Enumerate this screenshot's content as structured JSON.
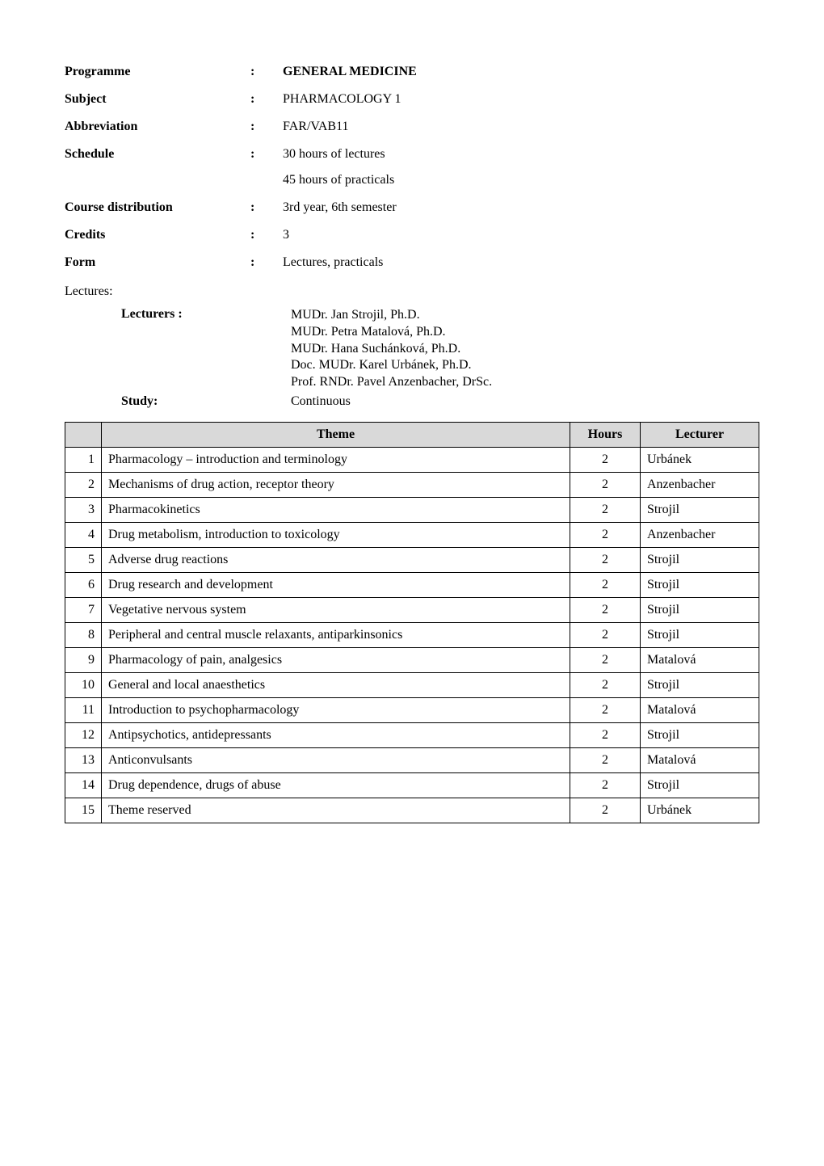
{
  "meta": {
    "rows": [
      {
        "label": "Programme",
        "value": "GENERAL MEDICINE",
        "value_bold": true,
        "sub": null
      },
      {
        "label": "Subject",
        "value": "PHARMACOLOGY 1",
        "value_bold": false,
        "sub": null
      },
      {
        "label": "Abbreviation",
        "value": "FAR/VAB11",
        "value_bold": false,
        "sub": null
      },
      {
        "label": "Schedule",
        "value": "30 hours of lectures",
        "value_bold": false,
        "sub": "45 hours of practicals"
      },
      {
        "label": "Course distribution",
        "value": "3rd year, 6th semester",
        "value_bold": false,
        "sub": null
      },
      {
        "label": "Credits",
        "value": "3",
        "value_bold": false,
        "sub": null
      },
      {
        "label": "Form",
        "value": "Lectures, practicals",
        "value_bold": false,
        "sub": null
      }
    ],
    "colon": ":"
  },
  "lectures": {
    "heading": "Lectures:",
    "lecturers_label": "Lecturers :",
    "lecturers": [
      "MUDr. Jan Strojil, Ph.D.",
      "MUDr. Petra Matalová, Ph.D.",
      "MUDr. Hana Suchánková, Ph.D.",
      "Doc. MUDr. Karel Urbánek, Ph.D.",
      "Prof. RNDr. Pavel Anzenbacher, DrSc."
    ],
    "study_label": "Study:",
    "study_value": "Continuous"
  },
  "table": {
    "columns": [
      "",
      "Theme",
      "Hours",
      "Lecturer"
    ],
    "header_bg": "#d9d9d9",
    "border_color": "#000000",
    "rows": [
      {
        "n": "1",
        "theme": "Pharmacology – introduction and terminology",
        "hours": "2",
        "lecturer": "Urbánek"
      },
      {
        "n": "2",
        "theme": "Mechanisms of drug action, receptor theory",
        "hours": "2",
        "lecturer": "Anzenbacher"
      },
      {
        "n": "3",
        "theme": "Pharmacokinetics",
        "hours": "2",
        "lecturer": "Strojil"
      },
      {
        "n": "4",
        "theme": "Drug metabolism, introduction to toxicology",
        "hours": "2",
        "lecturer": "Anzenbacher"
      },
      {
        "n": "5",
        "theme": "Adverse drug reactions",
        "hours": "2",
        "lecturer": "Strojil"
      },
      {
        "n": "6",
        "theme": "Drug research and development",
        "hours": "2",
        "lecturer": "Strojil"
      },
      {
        "n": "7",
        "theme": "Vegetative nervous system",
        "hours": "2",
        "lecturer": "Strojil"
      },
      {
        "n": "8",
        "theme": "Peripheral and central muscle relaxants, antiparkinsonics",
        "hours": "2",
        "lecturer": "Strojil"
      },
      {
        "n": "9",
        "theme": "Pharmacology of pain, analgesics",
        "hours": "2",
        "lecturer": "Matalová"
      },
      {
        "n": "10",
        "theme": "General and local anaesthetics",
        "hours": "2",
        "lecturer": "Strojil"
      },
      {
        "n": "11",
        "theme": "Introduction to psychopharmacology",
        "hours": "2",
        "lecturer": "Matalová"
      },
      {
        "n": "12",
        "theme": "Antipsychotics, antidepressants",
        "hours": "2",
        "lecturer": "Strojil"
      },
      {
        "n": "13",
        "theme": "Anticonvulsants",
        "hours": "2",
        "lecturer": "Matalová"
      },
      {
        "n": "14",
        "theme": "Drug dependence, drugs of abuse",
        "hours": "2",
        "lecturer": "Strojil"
      },
      {
        "n": "15",
        "theme": "Theme reserved",
        "hours": "2",
        "lecturer": "Urbánek"
      }
    ]
  }
}
